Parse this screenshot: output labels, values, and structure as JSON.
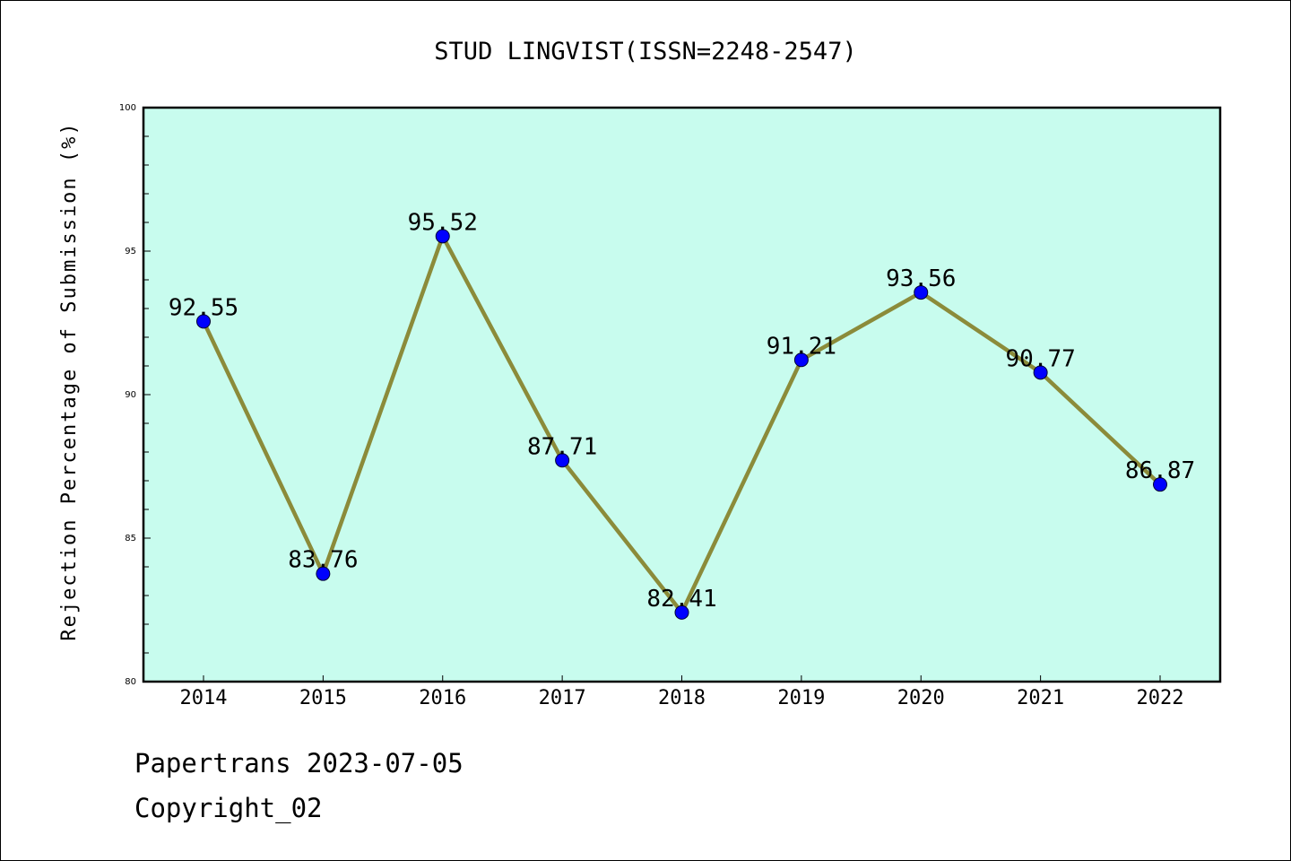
{
  "chart_data": {
    "type": "line",
    "title": "STUD LINGVIST(ISSN=2248-2547)",
    "xlabel": "",
    "ylabel": "Rejection Percentage of Submission (%)",
    "categories": [
      "2014",
      "2015",
      "2016",
      "2017",
      "2018",
      "2019",
      "2020",
      "2021",
      "2022"
    ],
    "series": [
      {
        "values": [
          92.55,
          83.76,
          95.52,
          87.71,
          82.41,
          91.21,
          93.56,
          90.77,
          86.87
        ],
        "value_labels": [
          "92.55",
          "83.76",
          "95.52",
          "87.71",
          "82.41",
          "91.21",
          "93.56",
          "90.77",
          "86.87"
        ],
        "line_color": "#8b8b3a",
        "marker_color": "#0000ff"
      }
    ],
    "ylim": [
      80,
      100
    ],
    "yticks": [
      "80",
      "85",
      "90",
      "95",
      "100"
    ],
    "plot_background": "#c8fcee",
    "grid": false,
    "legend": "none"
  },
  "footer": {
    "line1": "Papertrans 2023-07-05",
    "line2": "Copyright_02"
  }
}
